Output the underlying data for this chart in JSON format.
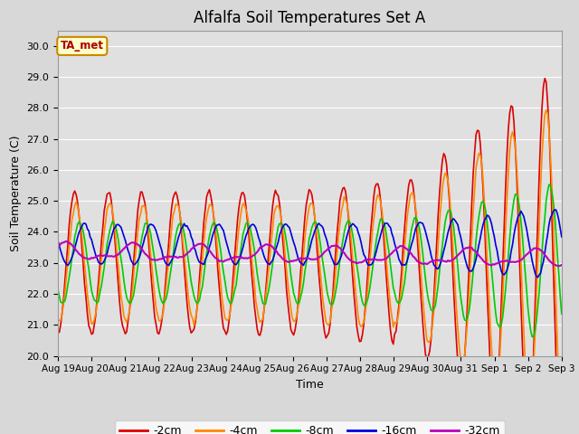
{
  "title": "Alfalfa Soil Temperatures Set A",
  "xlabel": "Time",
  "ylabel": "Soil Temperature (C)",
  "ylim": [
    20.0,
    30.5
  ],
  "yticks": [
    20.0,
    21.0,
    22.0,
    23.0,
    24.0,
    25.0,
    26.0,
    27.0,
    28.0,
    29.0,
    30.0
  ],
  "annotation": "TA_met",
  "annotation_color": "#aa0000",
  "annotation_bg": "#ffffcc",
  "annotation_border": "#cc8800",
  "colors": {
    "-2cm": "#dd0000",
    "-4cm": "#ff8800",
    "-8cm": "#00cc00",
    "-16cm": "#0000dd",
    "-32cm": "#bb00bb"
  },
  "plot_bg": "#e0e0e0",
  "grid_color": "#ffffff",
  "n_days": 15,
  "start_day": 19,
  "title_fontsize": 12
}
